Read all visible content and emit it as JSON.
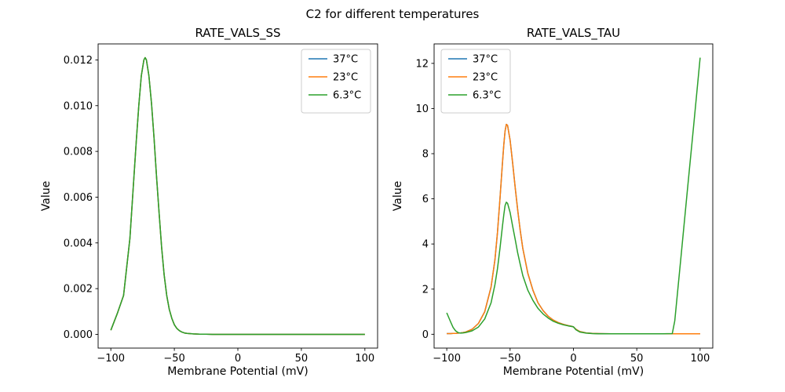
{
  "figure": {
    "title": "C2 for different temperatures",
    "background": "#ffffff"
  },
  "chart_data": [
    {
      "type": "line",
      "title": "RATE_VALS_SS",
      "xlabel": "Membrane Potential (mV)",
      "ylabel": "Value",
      "xlim": [
        -110,
        110
      ],
      "ylim": [
        -0.0006,
        0.0127
      ],
      "grid": false,
      "legend_pos": "upper right",
      "xticks": [
        -100,
        -50,
        0,
        50,
        100
      ],
      "xtick_labels": [
        "−100",
        "−50",
        "0",
        "50",
        "100"
      ],
      "yticks": [
        0,
        0.002,
        0.004,
        0.006,
        0.008,
        0.01,
        0.012
      ],
      "ytick_labels": [
        "0.000",
        "0.002",
        "0.004",
        "0.006",
        "0.008",
        "0.010",
        "0.012"
      ],
      "x": [
        -100,
        -95,
        -90,
        -85,
        -80,
        -78,
        -76,
        -74,
        -73,
        -72,
        -70,
        -68,
        -66,
        -64,
        -62,
        -60,
        -58,
        -56,
        -54,
        -52,
        -50,
        -48,
        -46,
        -44,
        -42,
        -40,
        -35,
        -30,
        -25,
        -20,
        -10,
        0,
        25,
        50,
        75,
        100
      ],
      "series": [
        {
          "name": "37°C",
          "color": "#1f77b4",
          "y": [
            0.00018,
            0.0009,
            0.0017,
            0.0042,
            0.0084,
            0.01,
            0.0113,
            0.012,
            0.0121,
            0.012,
            0.0113,
            0.0101,
            0.0086,
            0.0069,
            0.0053,
            0.0038,
            0.0026,
            0.0017,
            0.0011,
            0.0007,
            0.00042,
            0.00026,
            0.00016,
            0.0001,
            6e-05,
            4e-05,
            2e-05,
            1e-05,
            1e-05,
            0,
            0,
            0,
            0,
            0,
            0,
            0
          ]
        },
        {
          "name": "23°C",
          "color": "#ff7f0e",
          "y": [
            0.00018,
            0.0009,
            0.0017,
            0.0042,
            0.0084,
            0.01,
            0.0113,
            0.012,
            0.0121,
            0.012,
            0.0113,
            0.0101,
            0.0086,
            0.0069,
            0.0053,
            0.0038,
            0.0026,
            0.0017,
            0.0011,
            0.0007,
            0.00042,
            0.00026,
            0.00016,
            0.0001,
            6e-05,
            4e-05,
            2e-05,
            1e-05,
            1e-05,
            0,
            0,
            0,
            0,
            0,
            0,
            0
          ]
        },
        {
          "name": "6.3°C",
          "color": "#2ca02c",
          "y": [
            0.00018,
            0.0009,
            0.0017,
            0.0042,
            0.0084,
            0.01,
            0.0113,
            0.012,
            0.0121,
            0.012,
            0.0113,
            0.0101,
            0.0086,
            0.0069,
            0.0053,
            0.0038,
            0.0026,
            0.0017,
            0.0011,
            0.0007,
            0.00042,
            0.00026,
            0.00016,
            0.0001,
            6e-05,
            4e-05,
            2e-05,
            1e-05,
            1e-05,
            0,
            0,
            0,
            0,
            0,
            0,
            0
          ]
        }
      ]
    },
    {
      "type": "line",
      "title": "RATE_VALS_TAU",
      "xlabel": "Membrane Potential (mV)",
      "ylabel": "Value",
      "xlim": [
        -110,
        110
      ],
      "ylim": [
        -0.6125,
        12.8625
      ],
      "grid": false,
      "legend_pos": "upper left",
      "xticks": [
        -100,
        -50,
        0,
        50,
        100
      ],
      "xtick_labels": [
        "−100",
        "−50",
        "0",
        "50",
        "100"
      ],
      "yticks": [
        0,
        2,
        4,
        6,
        8,
        10,
        12
      ],
      "ytick_labels": [
        "0",
        "2",
        "4",
        "6",
        "8",
        "10",
        "12"
      ],
      "x": [
        -100,
        -97,
        -95,
        -93,
        -91,
        -89,
        -87,
        -85,
        -80,
        -75,
        -70,
        -65,
        -62,
        -60,
        -58,
        -56,
        -55,
        -54,
        -53,
        -52,
        -50,
        -48,
        -46,
        -44,
        -42,
        -40,
        -36,
        -32,
        -28,
        -24,
        -20,
        -16,
        -12,
        -8,
        -4,
        -2,
        0,
        2,
        5,
        10,
        15,
        20,
        30,
        40,
        50,
        60,
        70,
        78,
        80,
        85,
        90,
        95,
        100
      ],
      "series": [
        {
          "name": "37°C",
          "color": "#1f77b4",
          "y": [
            0.03,
            0.03,
            0.04,
            0.04,
            0.05,
            0.06,
            0.08,
            0.1,
            0.22,
            0.48,
            1.0,
            2.1,
            3.3,
            4.5,
            6.0,
            7.6,
            8.4,
            9.0,
            9.3,
            9.25,
            8.6,
            7.6,
            6.5,
            5.5,
            4.6,
            3.8,
            2.7,
            1.95,
            1.4,
            1.05,
            0.8,
            0.63,
            0.52,
            0.44,
            0.38,
            0.36,
            0.33,
            0.22,
            0.12,
            0.06,
            0.04,
            0.03,
            0.02,
            0.02,
            0.02,
            0.02,
            0.02,
            0.02,
            0.02,
            0.02,
            0.02,
            0.02,
            0.02
          ]
        },
        {
          "name": "23°C",
          "color": "#ff7f0e",
          "y": [
            0.03,
            0.03,
            0.04,
            0.04,
            0.05,
            0.06,
            0.08,
            0.1,
            0.22,
            0.48,
            1.0,
            2.1,
            3.3,
            4.5,
            6.0,
            7.6,
            8.4,
            9.0,
            9.3,
            9.25,
            8.6,
            7.6,
            6.5,
            5.5,
            4.6,
            3.8,
            2.7,
            1.95,
            1.4,
            1.05,
            0.8,
            0.63,
            0.52,
            0.44,
            0.38,
            0.36,
            0.33,
            0.22,
            0.12,
            0.06,
            0.04,
            0.03,
            0.02,
            0.02,
            0.02,
            0.02,
            0.02,
            0.02,
            0.02,
            0.02,
            0.02,
            0.02,
            0.02
          ]
        },
        {
          "name": "6.3°C",
          "color": "#2ca02c",
          "y": [
            0.95,
            0.55,
            0.3,
            0.15,
            0.07,
            0.05,
            0.06,
            0.08,
            0.15,
            0.32,
            0.68,
            1.4,
            2.2,
            2.9,
            3.8,
            4.8,
            5.3,
            5.7,
            5.85,
            5.8,
            5.4,
            4.8,
            4.2,
            3.6,
            3.1,
            2.6,
            1.95,
            1.5,
            1.15,
            0.9,
            0.72,
            0.58,
            0.49,
            0.42,
            0.37,
            0.35,
            0.33,
            0.2,
            0.1,
            0.05,
            0.03,
            0.02,
            0.02,
            0.02,
            0.02,
            0.02,
            0.02,
            0.03,
            0.6,
            3.5,
            6.4,
            9.3,
            12.25
          ]
        }
      ]
    }
  ]
}
